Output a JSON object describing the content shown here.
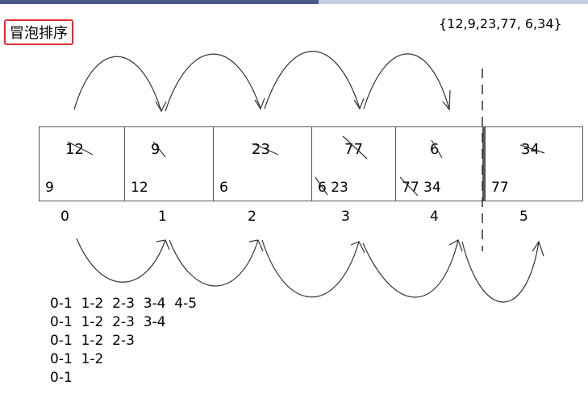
{
  "title": "冒泡排序",
  "array_text": "{12,9,23,77,  6,34}",
  "cells": [
    {
      "original": "12",
      "after": "9"
    },
    {
      "original": "9",
      "after": "12"
    },
    {
      "original": "23",
      "after": "6"
    },
    {
      "original": "77",
      "after": "6  23"
    },
    {
      "original": "6",
      "after": "77 34"
    },
    {
      "original": "34",
      "after": "77"
    }
  ],
  "indices": [
    "0",
    "1",
    "2",
    "3",
    "4",
    "5"
  ],
  "passes": [
    "0-1  1-2  2-3  3-4  4-5",
    "0-1  1-2  2-3  3-4",
    "0-1  1-2  2-3",
    "0-1  1-2",
    "0-1"
  ],
  "colors": {
    "title_border": "#e03030",
    "top_bar": "#4a5a8c"
  }
}
